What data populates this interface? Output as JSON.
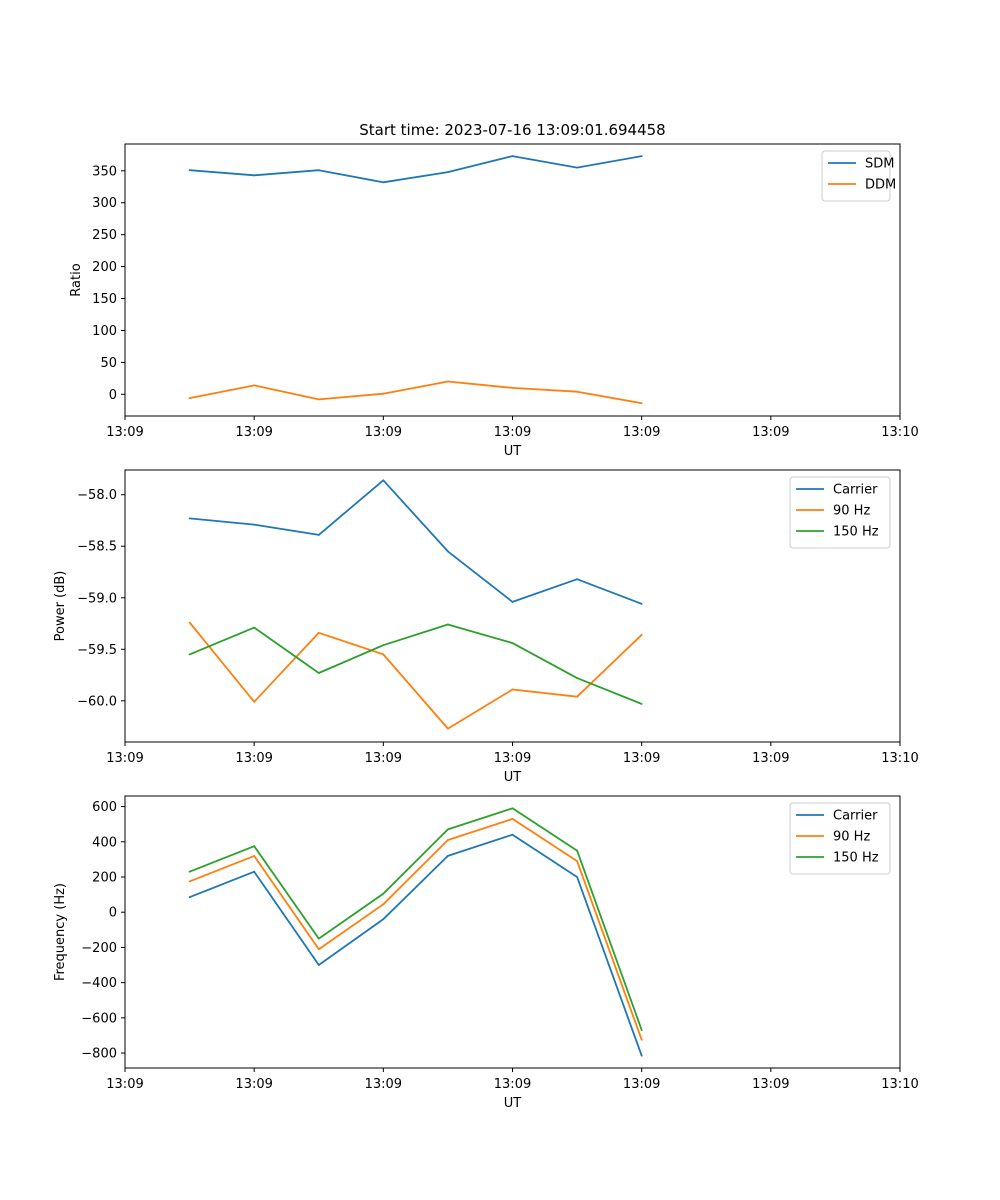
{
  "colors": {
    "c0": "#1f77b4",
    "c1": "#ff7f0e",
    "c2": "#2ca02c"
  },
  "chart_data": [
    {
      "type": "line",
      "title": "Start time: 2023-07-16 13:09:01.694458",
      "xlabel": "UT",
      "ylabel": "Ratio",
      "xlim": [
        0,
        12
      ],
      "ylim": [
        -34,
        392
      ],
      "x": [
        1,
        2,
        3,
        4,
        5,
        6,
        7,
        8
      ],
      "xticks": [
        0,
        2,
        4,
        6,
        8,
        10,
        12
      ],
      "xtick_labels": [
        "13:09",
        "13:09",
        "13:09",
        "13:09",
        "13:09",
        "13:09",
        "13:10"
      ],
      "yticks": [
        0,
        50,
        100,
        150,
        200,
        250,
        300,
        350
      ],
      "ytick_labels": [
        "0",
        "50",
        "100",
        "150",
        "200",
        "250",
        "300",
        "350"
      ],
      "legend_position": "top-right",
      "series": [
        {
          "name": "SDM",
          "color": "#1f77b4",
          "values": [
            351,
            343,
            351,
            332,
            348,
            373,
            355,
            373
          ]
        },
        {
          "name": "DDM",
          "color": "#ff7f0e",
          "values": [
            -6,
            14,
            -8,
            1,
            20,
            10,
            4,
            -14
          ]
        }
      ]
    },
    {
      "type": "line",
      "title": "",
      "xlabel": "UT",
      "ylabel": "Power (dB)",
      "xlim": [
        0,
        12
      ],
      "ylim": [
        -60.4,
        -57.76
      ],
      "x": [
        1,
        2,
        3,
        4,
        5,
        6,
        7,
        8
      ],
      "xticks": [
        0,
        2,
        4,
        6,
        8,
        10,
        12
      ],
      "xtick_labels": [
        "13:09",
        "13:09",
        "13:09",
        "13:09",
        "13:09",
        "13:09",
        "13:10"
      ],
      "yticks": [
        -60.0,
        -59.5,
        -59.0,
        -58.5,
        -58.0
      ],
      "ytick_labels": [
        "−60.0",
        "−59.5",
        "−59.0",
        "−58.5",
        "−58.0"
      ],
      "legend_position": "top-right",
      "series": [
        {
          "name": "Carrier",
          "color": "#1f77b4",
          "values": [
            -58.23,
            -58.29,
            -58.39,
            -57.86,
            -58.55,
            -59.04,
            -58.82,
            -59.06
          ]
        },
        {
          "name": "90 Hz",
          "color": "#ff7f0e",
          "values": [
            -59.24,
            -60.01,
            -59.34,
            -59.55,
            -60.27,
            -59.89,
            -59.96,
            -59.36
          ]
        },
        {
          "name": "150 Hz",
          "color": "#2ca02c",
          "values": [
            -59.55,
            -59.29,
            -59.73,
            -59.46,
            -59.26,
            -59.44,
            -59.78,
            -60.03
          ]
        }
      ]
    },
    {
      "type": "line",
      "title": "",
      "xlabel": "UT",
      "ylabel": "Frequency (Hz)",
      "xlim": [
        0,
        12
      ],
      "ylim": [
        -885,
        660
      ],
      "x": [
        1,
        2,
        3,
        4,
        5,
        6,
        7,
        8
      ],
      "xticks": [
        0,
        2,
        4,
        6,
        8,
        10,
        12
      ],
      "xtick_labels": [
        "13:09",
        "13:09",
        "13:09",
        "13:09",
        "13:09",
        "13:09",
        "13:10"
      ],
      "yticks": [
        -800,
        -600,
        -400,
        -200,
        0,
        200,
        400,
        600
      ],
      "ytick_labels": [
        "−800",
        "−600",
        "−400",
        "−200",
        "0",
        "200",
        "400",
        "600"
      ],
      "legend_position": "top-right",
      "series": [
        {
          "name": "Carrier",
          "color": "#1f77b4",
          "values": [
            85,
            230,
            -300,
            -40,
            320,
            440,
            200,
            -815
          ]
        },
        {
          "name": "90 Hz",
          "color": "#ff7f0e",
          "values": [
            175,
            320,
            -210,
            45,
            410,
            530,
            290,
            -725
          ]
        },
        {
          "name": "150 Hz",
          "color": "#2ca02c",
          "values": [
            230,
            375,
            -150,
            105,
            470,
            590,
            350,
            -670
          ]
        }
      ]
    }
  ]
}
